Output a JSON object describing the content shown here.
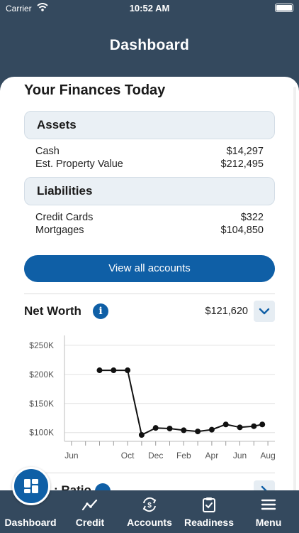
{
  "status_bar": {
    "carrier": "Carrier",
    "time": "10:52 AM"
  },
  "header": {
    "title": "Dashboard"
  },
  "finances": {
    "title": "Your Finances Today",
    "assets": {
      "header": "Assets",
      "rows": [
        {
          "label": "Cash",
          "value": "$14,297"
        },
        {
          "label": "Est. Property Value",
          "value": "$212,495"
        }
      ]
    },
    "liabilities": {
      "header": "Liabilities",
      "rows": [
        {
          "label": "Credit Cards",
          "value": "$322"
        },
        {
          "label": "Mortgages",
          "value": "$104,850"
        }
      ]
    },
    "view_all_label": "View all accounts"
  },
  "net_worth": {
    "title": "Net Worth",
    "value": "$121,620",
    "info_glyph": "i"
  },
  "chart_data": {
    "type": "line",
    "ytick_labels": [
      "$250K",
      "$200K",
      "$150K",
      "$100K"
    ],
    "yticks": [
      250000,
      200000,
      150000,
      100000
    ],
    "xtick_labels": [
      "Jun",
      "Oct",
      "Dec",
      "Feb",
      "Apr",
      "Jun",
      "Aug"
    ],
    "xtick_positions": [
      0,
      4,
      6,
      8,
      10,
      12,
      14
    ],
    "ylim": [
      85000,
      262000
    ],
    "xlim": [
      -0.5,
      14.5
    ],
    "grid": true,
    "points": [
      {
        "x": 2.0,
        "y": 207000
      },
      {
        "x": 3.0,
        "y": 207000
      },
      {
        "x": 4.0,
        "y": 207000
      },
      {
        "x": 5.0,
        "y": 96000
      },
      {
        "x": 6.0,
        "y": 108000
      },
      {
        "x": 7.0,
        "y": 107000
      },
      {
        "x": 8.0,
        "y": 104000
      },
      {
        "x": 9.0,
        "y": 102000
      },
      {
        "x": 10.0,
        "y": 105000
      },
      {
        "x": 11.0,
        "y": 114000
      },
      {
        "x": 12.0,
        "y": 109000
      },
      {
        "x": 13.0,
        "y": 111000
      },
      {
        "x": 13.6,
        "y": 114000
      }
    ]
  },
  "ratio": {
    "title": ": Ratio"
  },
  "tabs": [
    {
      "label": "Dashboard",
      "icon": "dashboard-icon"
    },
    {
      "label": "Credit",
      "icon": "trend-icon"
    },
    {
      "label": "Accounts",
      "icon": "accounts-icon"
    },
    {
      "label": "Readiness",
      "icon": "clipboard-check-icon"
    },
    {
      "label": "Menu",
      "icon": "menu-icon"
    }
  ],
  "colors": {
    "primary": "#0f5fa6",
    "nav": "#34495e",
    "group_bg": "#eaf0f5"
  }
}
